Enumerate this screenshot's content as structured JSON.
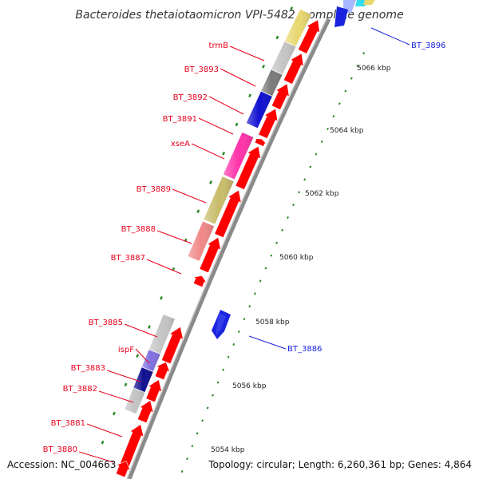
{
  "title": "Bacteroides thetaiotaomicron VPI-5482, complete genome",
  "footer": {
    "accession": "Accession: NC_004663",
    "topology": "Topology: circular; Length: 6,260,361 bp; Genes: 4,864"
  },
  "colors": {
    "forward_arrow": "#ff0000",
    "reverse_arrow": "#1a24e0",
    "backbone": "#8a8a8a",
    "label_red": "#e8001c",
    "label_blue": "#1a24e0",
    "tick_green": "#2a8a2a"
  },
  "left_labels": [
    "trmB",
    "BT_3893",
    "BT_3892",
    "BT_3891",
    "xseA",
    "BT_3889",
    "BT_3888",
    "BT_3887",
    "BT_3885",
    "ispF",
    "BT_3883",
    "BT_3882",
    "BT_3881",
    "BT_3880"
  ],
  "right_labels": [
    "BT_3896",
    "BT_3886"
  ],
  "scale_labels": [
    "5066 kbp",
    "5064 kbp",
    "5062 kbp",
    "5060 kbp",
    "5058 kbp",
    "5056 kbp",
    "5054 kbp"
  ],
  "cog_box_colors": [
    "#e8d870",
    "#c4c4c4",
    "#7a7a7a",
    "#1010d0",
    "#ff33aa",
    "#c8bc6a",
    "#f08888",
    "#c4c4c4",
    "#8070e0",
    "#101090",
    "#c4c4c4"
  ]
}
